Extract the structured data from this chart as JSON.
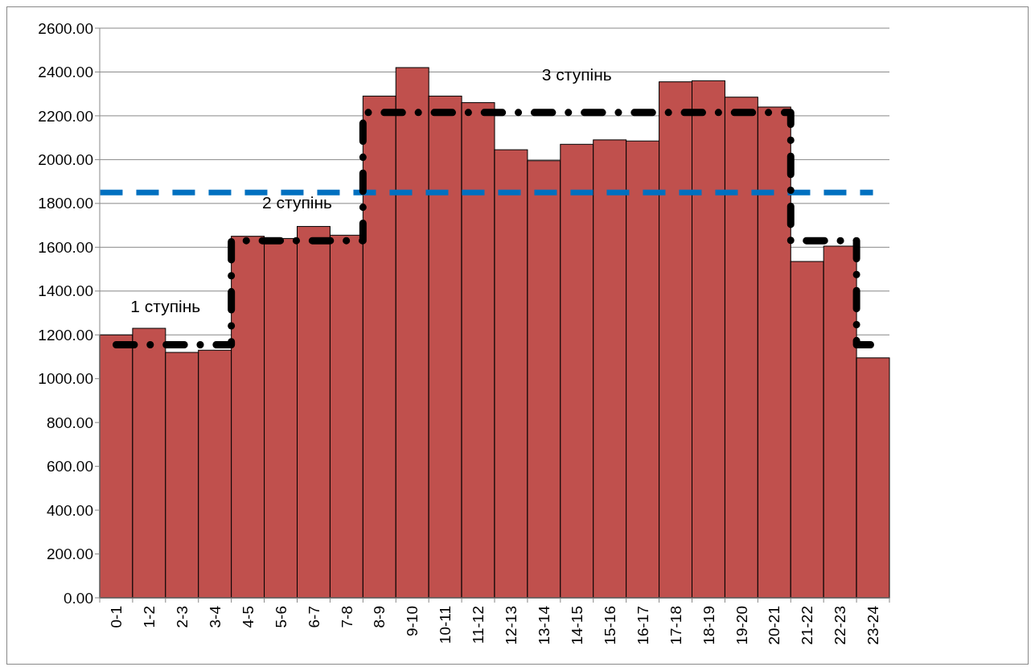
{
  "chart_data": {
    "type": "bar",
    "categories": [
      "0-1",
      "1-2",
      "2-3",
      "3-4",
      "4-5",
      "5-6",
      "6-7",
      "7-8",
      "8-9",
      "9-10",
      "10-11",
      "11-12",
      "12-13",
      "13-14",
      "14-15",
      "15-16",
      "16-17",
      "17-18",
      "18-19",
      "19-20",
      "20-21",
      "21-22",
      "22-23",
      "23-24"
    ],
    "series": [
      {
        "color": "#c0504d",
        "values": [
          1200,
          1230,
          1120,
          1130,
          1650,
          1640,
          1695,
          1655,
          2290,
          2420,
          2290,
          2260,
          2045,
          1995,
          2070,
          2090,
          2085,
          2355,
          2360,
          2285,
          2240,
          1535,
          1605,
          1095
        ]
      },
      {
        "type": "step",
        "color": "#000000",
        "line_style": "dashed",
        "values": [
          1155,
          1155,
          1155,
          1155,
          1630,
          1630,
          1630,
          1630,
          2215,
          2215,
          2215,
          2215,
          2215,
          2215,
          2215,
          2215,
          2215,
          2215,
          2215,
          2215,
          2215,
          1630,
          1630,
          1155
        ]
      }
    ],
    "ylim": [
      0,
      2600
    ],
    "yticks": [
      {
        "value": 0,
        "label": "0.00"
      },
      {
        "value": 200,
        "label": "200.00"
      },
      {
        "value": 400,
        "label": "400.00"
      },
      {
        "value": 600,
        "label": "600.00"
      },
      {
        "value": 800,
        "label": "800.00"
      },
      {
        "value": 1000,
        "label": "1000.00"
      },
      {
        "value": 1200,
        "label": "1200.00"
      },
      {
        "value": 1400,
        "label": "1400.00"
      },
      {
        "value": 1600,
        "label": "1600.00"
      },
      {
        "value": 1800,
        "label": "1800.00"
      },
      {
        "value": 2000,
        "label": "2000.00"
      },
      {
        "value": 2200,
        "label": "2200.00"
      },
      {
        "value": 2400,
        "label": "2400.00"
      },
      {
        "value": 2600,
        "label": "2600.00"
      }
    ],
    "grid": "y",
    "ref_lines": [
      {
        "axis": "y",
        "value": 1850,
        "color": "#0070c0",
        "line_style": "dashed"
      }
    ],
    "annotations": [
      "1 ступінь",
      "2 ступінь",
      "3 ступінь"
    ]
  }
}
